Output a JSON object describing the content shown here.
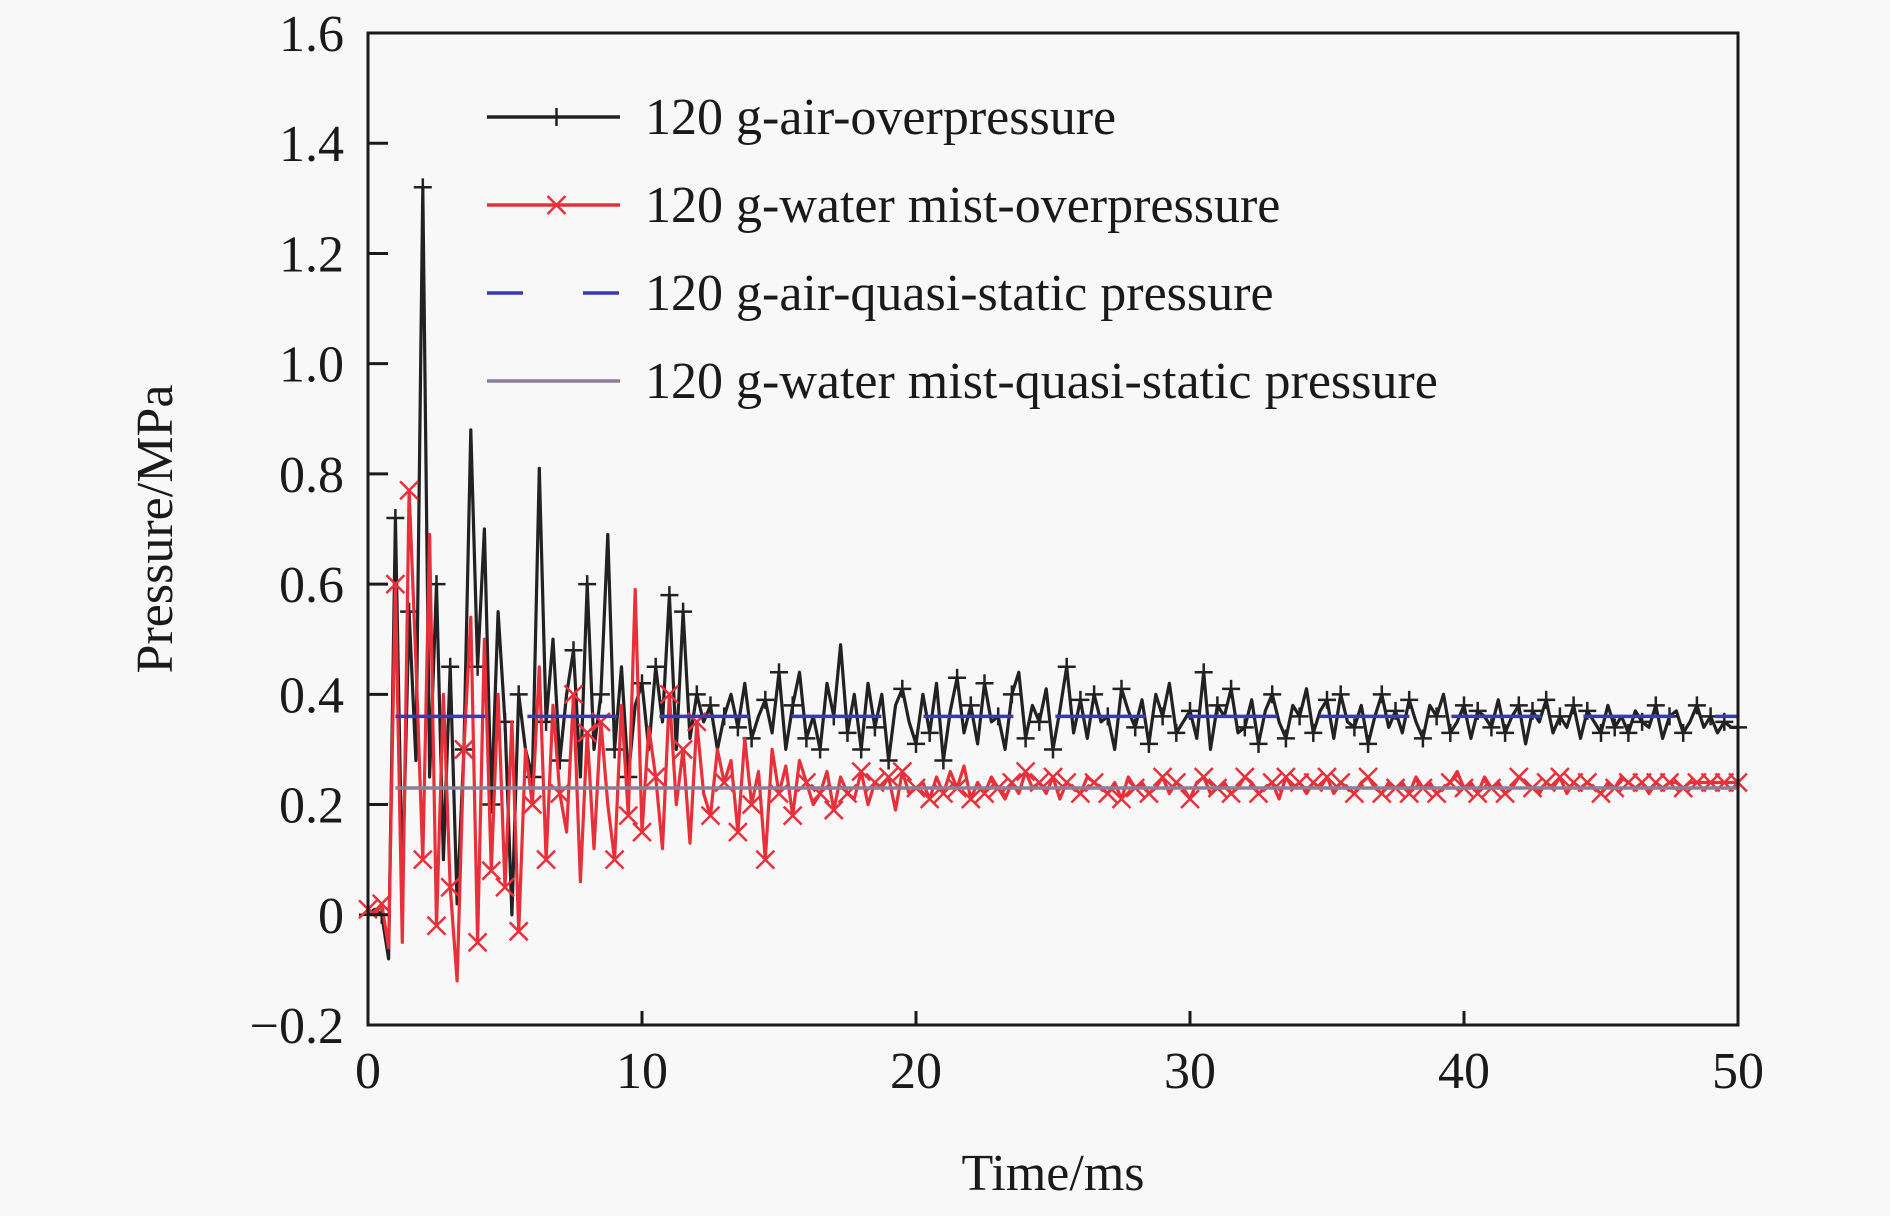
{
  "chart_data": {
    "type": "line",
    "title": "",
    "xlabel": "Time/ms",
    "ylabel": "Pressure/MPa",
    "xlim": [
      0,
      50
    ],
    "ylim": [
      -0.2,
      1.6
    ],
    "xticks": [
      0,
      10,
      20,
      30,
      40,
      50
    ],
    "xtick_labels": [
      "0",
      "10",
      "20",
      "30",
      "40",
      "50"
    ],
    "yticks": [
      -0.2,
      0,
      0.2,
      0.4,
      0.6,
      0.8,
      1.0,
      1.2,
      1.4,
      1.6
    ],
    "ytick_labels": [
      "−0.2",
      "0",
      "0.2",
      "0.4",
      "0.6",
      "0.8",
      "1.0",
      "1.2",
      "1.4",
      "1.6"
    ],
    "grid": false,
    "legend_position": "top-right",
    "x_step": 0.25,
    "series": [
      {
        "name": "120 g-air-overpressure",
        "color": "#222222",
        "style": "solid",
        "marker": "plus",
        "values": [
          0.0,
          0.01,
          0.0,
          -0.08,
          0.72,
          0.05,
          0.55,
          0.28,
          1.32,
          0.25,
          0.6,
          0.1,
          0.45,
          0.02,
          0.3,
          0.88,
          0.45,
          0.7,
          0.2,
          0.55,
          0.35,
          0.0,
          0.4,
          0.3,
          0.25,
          0.81,
          0.35,
          0.5,
          0.28,
          0.4,
          0.48,
          0.25,
          0.6,
          0.3,
          0.4,
          0.69,
          0.3,
          0.45,
          0.25,
          0.38,
          0.42,
          0.3,
          0.45,
          0.35,
          0.58,
          0.3,
          0.55,
          0.32,
          0.4,
          0.35,
          0.38,
          0.3,
          0.36,
          0.4,
          0.34,
          0.42,
          0.32,
          0.36,
          0.39,
          0.33,
          0.44,
          0.3,
          0.38,
          0.44,
          0.32,
          0.36,
          0.3,
          0.42,
          0.36,
          0.49,
          0.33,
          0.4,
          0.3,
          0.42,
          0.34,
          0.4,
          0.28,
          0.38,
          0.41,
          0.35,
          0.31,
          0.4,
          0.33,
          0.42,
          0.28,
          0.37,
          0.43,
          0.33,
          0.38,
          0.31,
          0.42,
          0.35,
          0.36,
          0.3,
          0.4,
          0.44,
          0.32,
          0.38,
          0.35,
          0.41,
          0.3,
          0.37,
          0.45,
          0.33,
          0.39,
          0.32,
          0.4,
          0.35,
          0.36,
          0.3,
          0.41,
          0.37,
          0.34,
          0.39,
          0.31,
          0.4,
          0.36,
          0.42,
          0.33,
          0.35,
          0.37,
          0.32,
          0.44,
          0.3,
          0.38,
          0.36,
          0.41,
          0.33,
          0.34,
          0.39,
          0.31,
          0.37,
          0.4,
          0.35,
          0.32,
          0.38,
          0.36,
          0.41,
          0.33,
          0.37,
          0.39,
          0.32,
          0.4,
          0.35,
          0.34,
          0.38,
          0.31,
          0.36,
          0.4,
          0.34,
          0.37,
          0.33,
          0.39,
          0.35,
          0.32,
          0.38,
          0.36,
          0.4,
          0.33,
          0.35,
          0.38,
          0.32,
          0.37,
          0.36,
          0.34,
          0.39,
          0.33,
          0.36,
          0.38,
          0.31,
          0.37,
          0.35,
          0.39,
          0.33,
          0.36,
          0.34,
          0.38,
          0.32,
          0.37,
          0.35,
          0.33,
          0.38,
          0.34,
          0.36,
          0.33,
          0.37,
          0.35,
          0.34,
          0.38,
          0.32,
          0.36,
          0.37,
          0.33,
          0.35,
          0.38,
          0.34,
          0.36,
          0.33,
          0.35,
          0.34,
          0.34
        ]
      },
      {
        "name": "120 g-water mist-overpressure",
        "color": "#e8303a",
        "style": "solid",
        "marker": "x",
        "values": [
          0.01,
          0.0,
          0.02,
          -0.06,
          0.6,
          -0.05,
          0.77,
          0.46,
          0.1,
          0.69,
          -0.02,
          0.4,
          0.05,
          -0.12,
          0.3,
          0.54,
          -0.05,
          0.5,
          0.08,
          0.4,
          0.05,
          0.35,
          -0.03,
          0.3,
          0.2,
          0.45,
          0.1,
          0.38,
          0.22,
          0.15,
          0.4,
          0.06,
          0.33,
          0.12,
          0.35,
          0.2,
          0.1,
          0.38,
          0.18,
          0.59,
          0.15,
          0.34,
          0.25,
          0.12,
          0.4,
          0.2,
          0.3,
          0.13,
          0.35,
          0.22,
          0.18,
          0.3,
          0.24,
          0.28,
          0.15,
          0.32,
          0.2,
          0.26,
          0.1,
          0.3,
          0.22,
          0.27,
          0.18,
          0.28,
          0.24,
          0.2,
          0.22,
          0.26,
          0.19,
          0.25,
          0.22,
          0.21,
          0.26,
          0.2,
          0.24,
          0.23,
          0.25,
          0.19,
          0.26,
          0.22,
          0.23,
          0.24,
          0.21,
          0.25,
          0.22,
          0.26,
          0.23,
          0.27,
          0.21,
          0.24,
          0.22,
          0.25,
          0.23,
          0.21,
          0.24,
          0.22,
          0.26,
          0.23,
          0.24,
          0.22,
          0.25,
          0.21,
          0.24,
          0.23,
          0.22,
          0.25,
          0.24,
          0.23,
          0.22,
          0.24,
          0.21,
          0.25,
          0.23,
          0.24,
          0.22,
          0.23,
          0.25,
          0.22,
          0.24,
          0.23,
          0.21,
          0.24,
          0.25,
          0.22,
          0.23,
          0.24,
          0.22,
          0.23,
          0.25,
          0.24,
          0.22,
          0.23,
          0.24,
          0.21,
          0.25,
          0.23,
          0.24,
          0.22,
          0.24,
          0.23,
          0.25,
          0.22,
          0.24,
          0.23,
          0.22,
          0.24,
          0.25,
          0.23,
          0.22,
          0.24,
          0.23,
          0.24,
          0.22,
          0.25,
          0.23,
          0.24,
          0.22,
          0.23,
          0.24,
          0.26,
          0.23,
          0.24,
          0.22,
          0.25,
          0.23,
          0.24,
          0.22,
          0.23,
          0.25,
          0.24,
          0.23,
          0.22,
          0.24,
          0.23,
          0.25,
          0.22,
          0.24,
          0.23,
          0.24,
          0.23,
          0.22,
          0.24,
          0.23,
          0.25,
          0.24,
          0.23,
          0.24,
          0.22,
          0.24,
          0.23,
          0.24,
          0.24,
          0.23,
          0.24,
          0.24,
          0.24,
          0.24,
          0.24,
          0.24,
          0.24,
          0.24
        ]
      },
      {
        "name": "120 g-air-quasi-static pressure",
        "color": "#3a3ab4",
        "style": "dashed",
        "marker": "none",
        "x_range": [
          1.0,
          50
        ],
        "value": 0.36
      },
      {
        "name": "120 g-water mist-quasi-static pressure",
        "color": "#8a7f96",
        "style": "solid",
        "marker": "none",
        "x_range": [
          1.0,
          50
        ],
        "value": 0.23
      }
    ]
  }
}
